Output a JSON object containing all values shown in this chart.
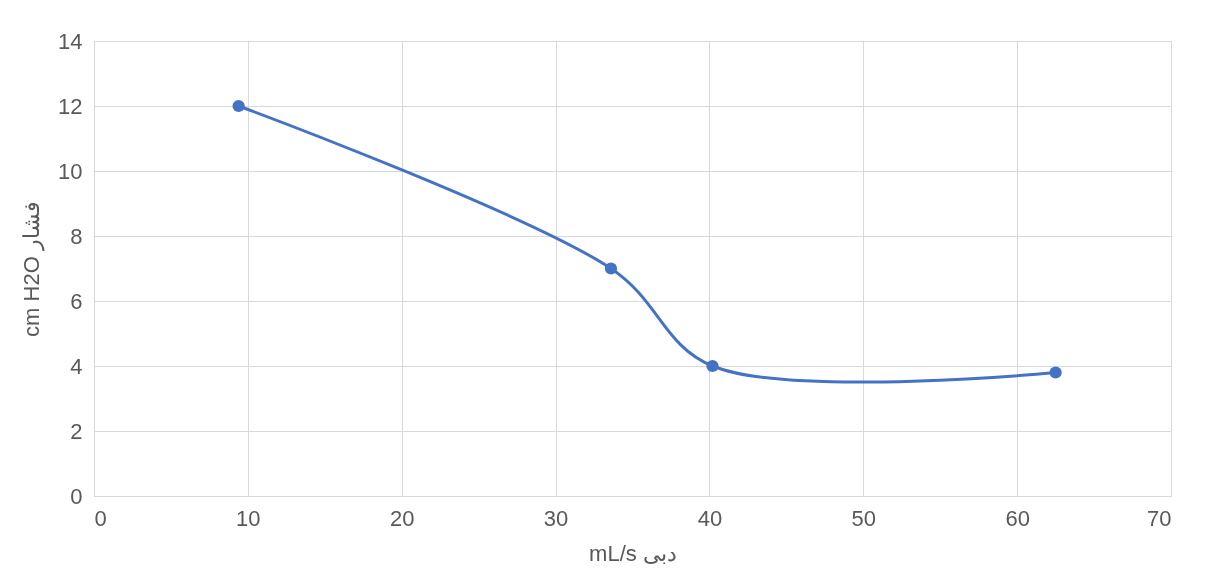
{
  "chart_data": {
    "type": "line",
    "xlabel": "mL/s دبی",
    "ylabel": "cm H2O فشار",
    "x": [
      9.4,
      33.6,
      40.2,
      62.5
    ],
    "series": [
      {
        "color": "#4472c4",
        "values": [
          12.0,
          7.0,
          4.0,
          3.8
        ]
      }
    ],
    "xlim": [
      0,
      70
    ],
    "xticks": [
      0,
      10,
      20,
      30,
      40,
      50,
      60,
      70
    ],
    "ylim": [
      0,
      14
    ],
    "yticks": [
      0,
      2,
      4,
      6,
      8,
      10,
      12,
      14
    ],
    "grid": true,
    "marker": "circle",
    "line_style": "solid"
  }
}
